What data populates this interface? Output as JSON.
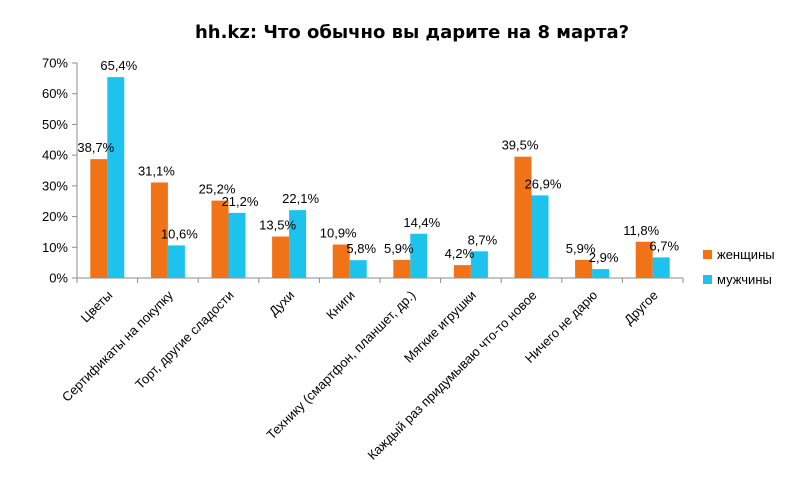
{
  "chart_data": {
    "type": "bar",
    "title": "hh.kz: Что обычно вы дарите на 8 марта?",
    "xlabel": "",
    "ylabel": "",
    "ylim": [
      0,
      70
    ],
    "yticks": [
      "0%",
      "10%",
      "20%",
      "30%",
      "40%",
      "50%",
      "60%",
      "70%"
    ],
    "grid": false,
    "legend_position": "right",
    "categories": [
      "Цветы",
      "Сертификаты на покупку",
      "Торт, другие сладости",
      "Духи",
      "Книги",
      "Технику (смартфон, планшет, др.)",
      "Мягкие игрушки",
      "Каждый раз придумываю что-то новое",
      "Ничего не дарю",
      "Другое"
    ],
    "series": [
      {
        "name": "женщины",
        "color": "#F07417",
        "values": [
          38.7,
          31.1,
          25.2,
          13.5,
          10.9,
          5.9,
          4.2,
          39.5,
          5.9,
          11.8
        ],
        "labels": [
          "38,7%",
          "31,1%",
          "25,2%",
          "13,5%",
          "10,9%",
          "5,9%",
          "4,2%",
          "39,5%",
          "5,9%",
          "11,8%"
        ]
      },
      {
        "name": "мужчины",
        "color": "#1DC3EC",
        "values": [
          65.4,
          10.6,
          21.2,
          22.1,
          5.8,
          14.4,
          8.7,
          26.9,
          2.9,
          6.7
        ],
        "labels": [
          "65,4%",
          "10,6%",
          "21,2%",
          "22,1%",
          "5,8%",
          "14,4%",
          "8,7%",
          "26,9%",
          "2,9%",
          "6,7%"
        ]
      }
    ]
  }
}
